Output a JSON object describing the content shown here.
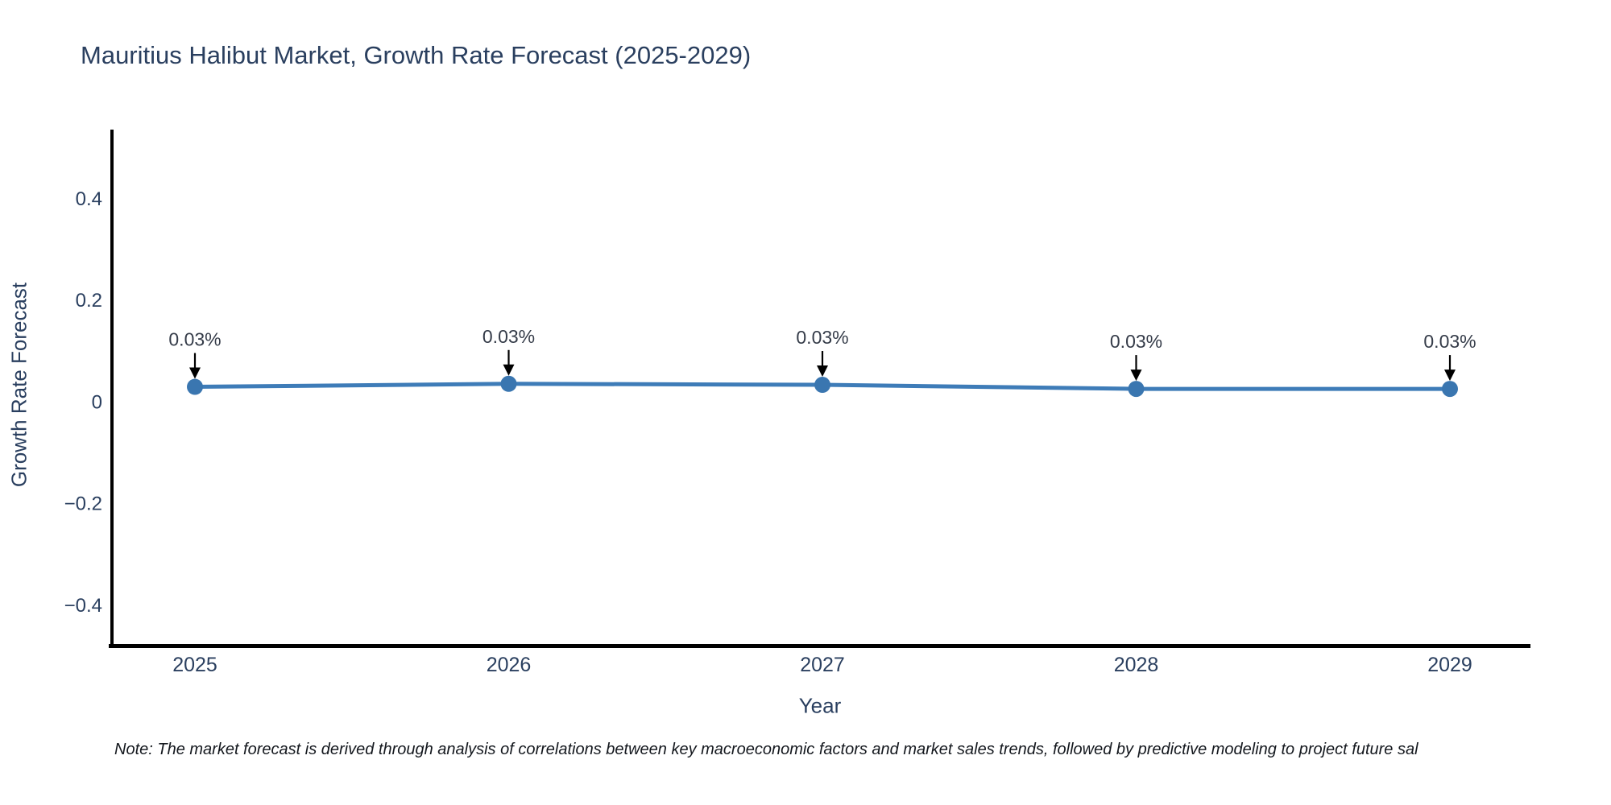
{
  "note": "Note: The market forecast is derived through analysis of correlations between key macroeconomic factors and market sales trends, followed by predictive modeling to project future sal",
  "colors": {
    "line": "#3e7cb8",
    "marker": "#3a76b0",
    "axis_line": "#000000",
    "title_text": "#2a3f5f",
    "tick_text": "#2a3f5f",
    "annotation_text": "#353c49",
    "arrow": "#000000",
    "background": "#ffffff"
  },
  "chart_data": {
    "type": "line",
    "title": "Mauritius Halibut Market, Growth Rate Forecast (2025-2029)",
    "xlabel": "Year",
    "ylabel": "Growth Rate Forecast",
    "categories": [
      "2025",
      "2026",
      "2027",
      "2028",
      "2029"
    ],
    "series": [
      {
        "name": "Growth Rate Forecast",
        "values": [
          0.029,
          0.035,
          0.033,
          0.025,
          0.025
        ]
      }
    ],
    "point_labels": [
      "0.03%",
      "0.03%",
      "0.03%",
      "0.03%",
      "0.03%"
    ],
    "y_ticks": [
      0.4,
      0.2,
      0,
      -0.2,
      -0.4
    ],
    "y_tick_labels": [
      "0.4",
      "0.2",
      "0",
      "−0.2",
      "−0.4"
    ],
    "ylim": [
      -0.48,
      0.535
    ],
    "grid": false,
    "legend": "none",
    "annotations_style": "value label above point with downward black arrow"
  }
}
